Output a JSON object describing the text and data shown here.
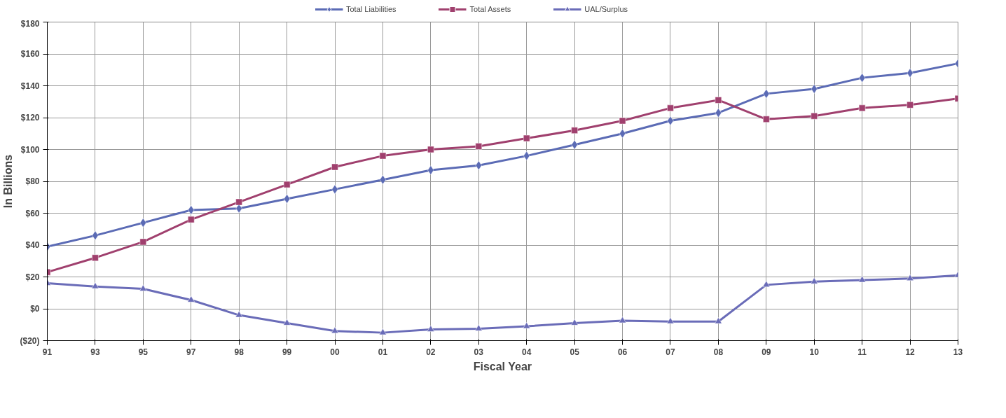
{
  "chart_data": {
    "type": "line",
    "xlabel": "Fiscal Year",
    "ylabel": "In Billions",
    "categories": [
      "91",
      "93",
      "95",
      "97",
      "98",
      "99",
      "00",
      "01",
      "02",
      "03",
      "04",
      "05",
      "06",
      "07",
      "08",
      "09",
      "10",
      "11",
      "12",
      "13"
    ],
    "series": [
      {
        "name": "Total Liabilities",
        "color": "#5b6bb5",
        "marker": "diamond",
        "values": [
          39,
          46,
          54,
          62,
          63,
          69,
          75,
          81,
          87,
          90,
          96,
          103,
          110,
          118,
          123,
          135,
          138,
          145,
          148,
          154
        ]
      },
      {
        "name": "Total Assets",
        "color": "#a0406e",
        "marker": "square",
        "values": [
          23,
          32,
          42,
          56,
          67,
          78,
          89,
          96,
          100,
          102,
          107,
          112,
          118,
          126,
          131,
          119,
          121,
          126,
          128,
          132
        ]
      },
      {
        "name": "UAL/Surplus",
        "color": "#6a6cb8",
        "marker": "triangle",
        "values": [
          16,
          14,
          12.5,
          5.5,
          -4,
          -9,
          -14,
          -15,
          -13,
          -12.5,
          -11,
          -9,
          -7.5,
          -8,
          -8,
          15,
          17,
          18,
          19,
          21
        ]
      }
    ],
    "ylim": [
      -20,
      180
    ],
    "yticks": [
      {
        "value": -20,
        "label": "($20)"
      },
      {
        "value": 0,
        "label": "$0"
      },
      {
        "value": 20,
        "label": "$20"
      },
      {
        "value": 40,
        "label": "$40"
      },
      {
        "value": 60,
        "label": "$60"
      },
      {
        "value": 80,
        "label": "$80"
      },
      {
        "value": 100,
        "label": "$100"
      },
      {
        "value": 120,
        "label": "$120"
      },
      {
        "value": 140,
        "label": "$140"
      },
      {
        "value": 160,
        "label": "$160"
      },
      {
        "value": 180,
        "label": "$180"
      }
    ],
    "grid": true,
    "legend": "top",
    "line_style": "solid"
  }
}
